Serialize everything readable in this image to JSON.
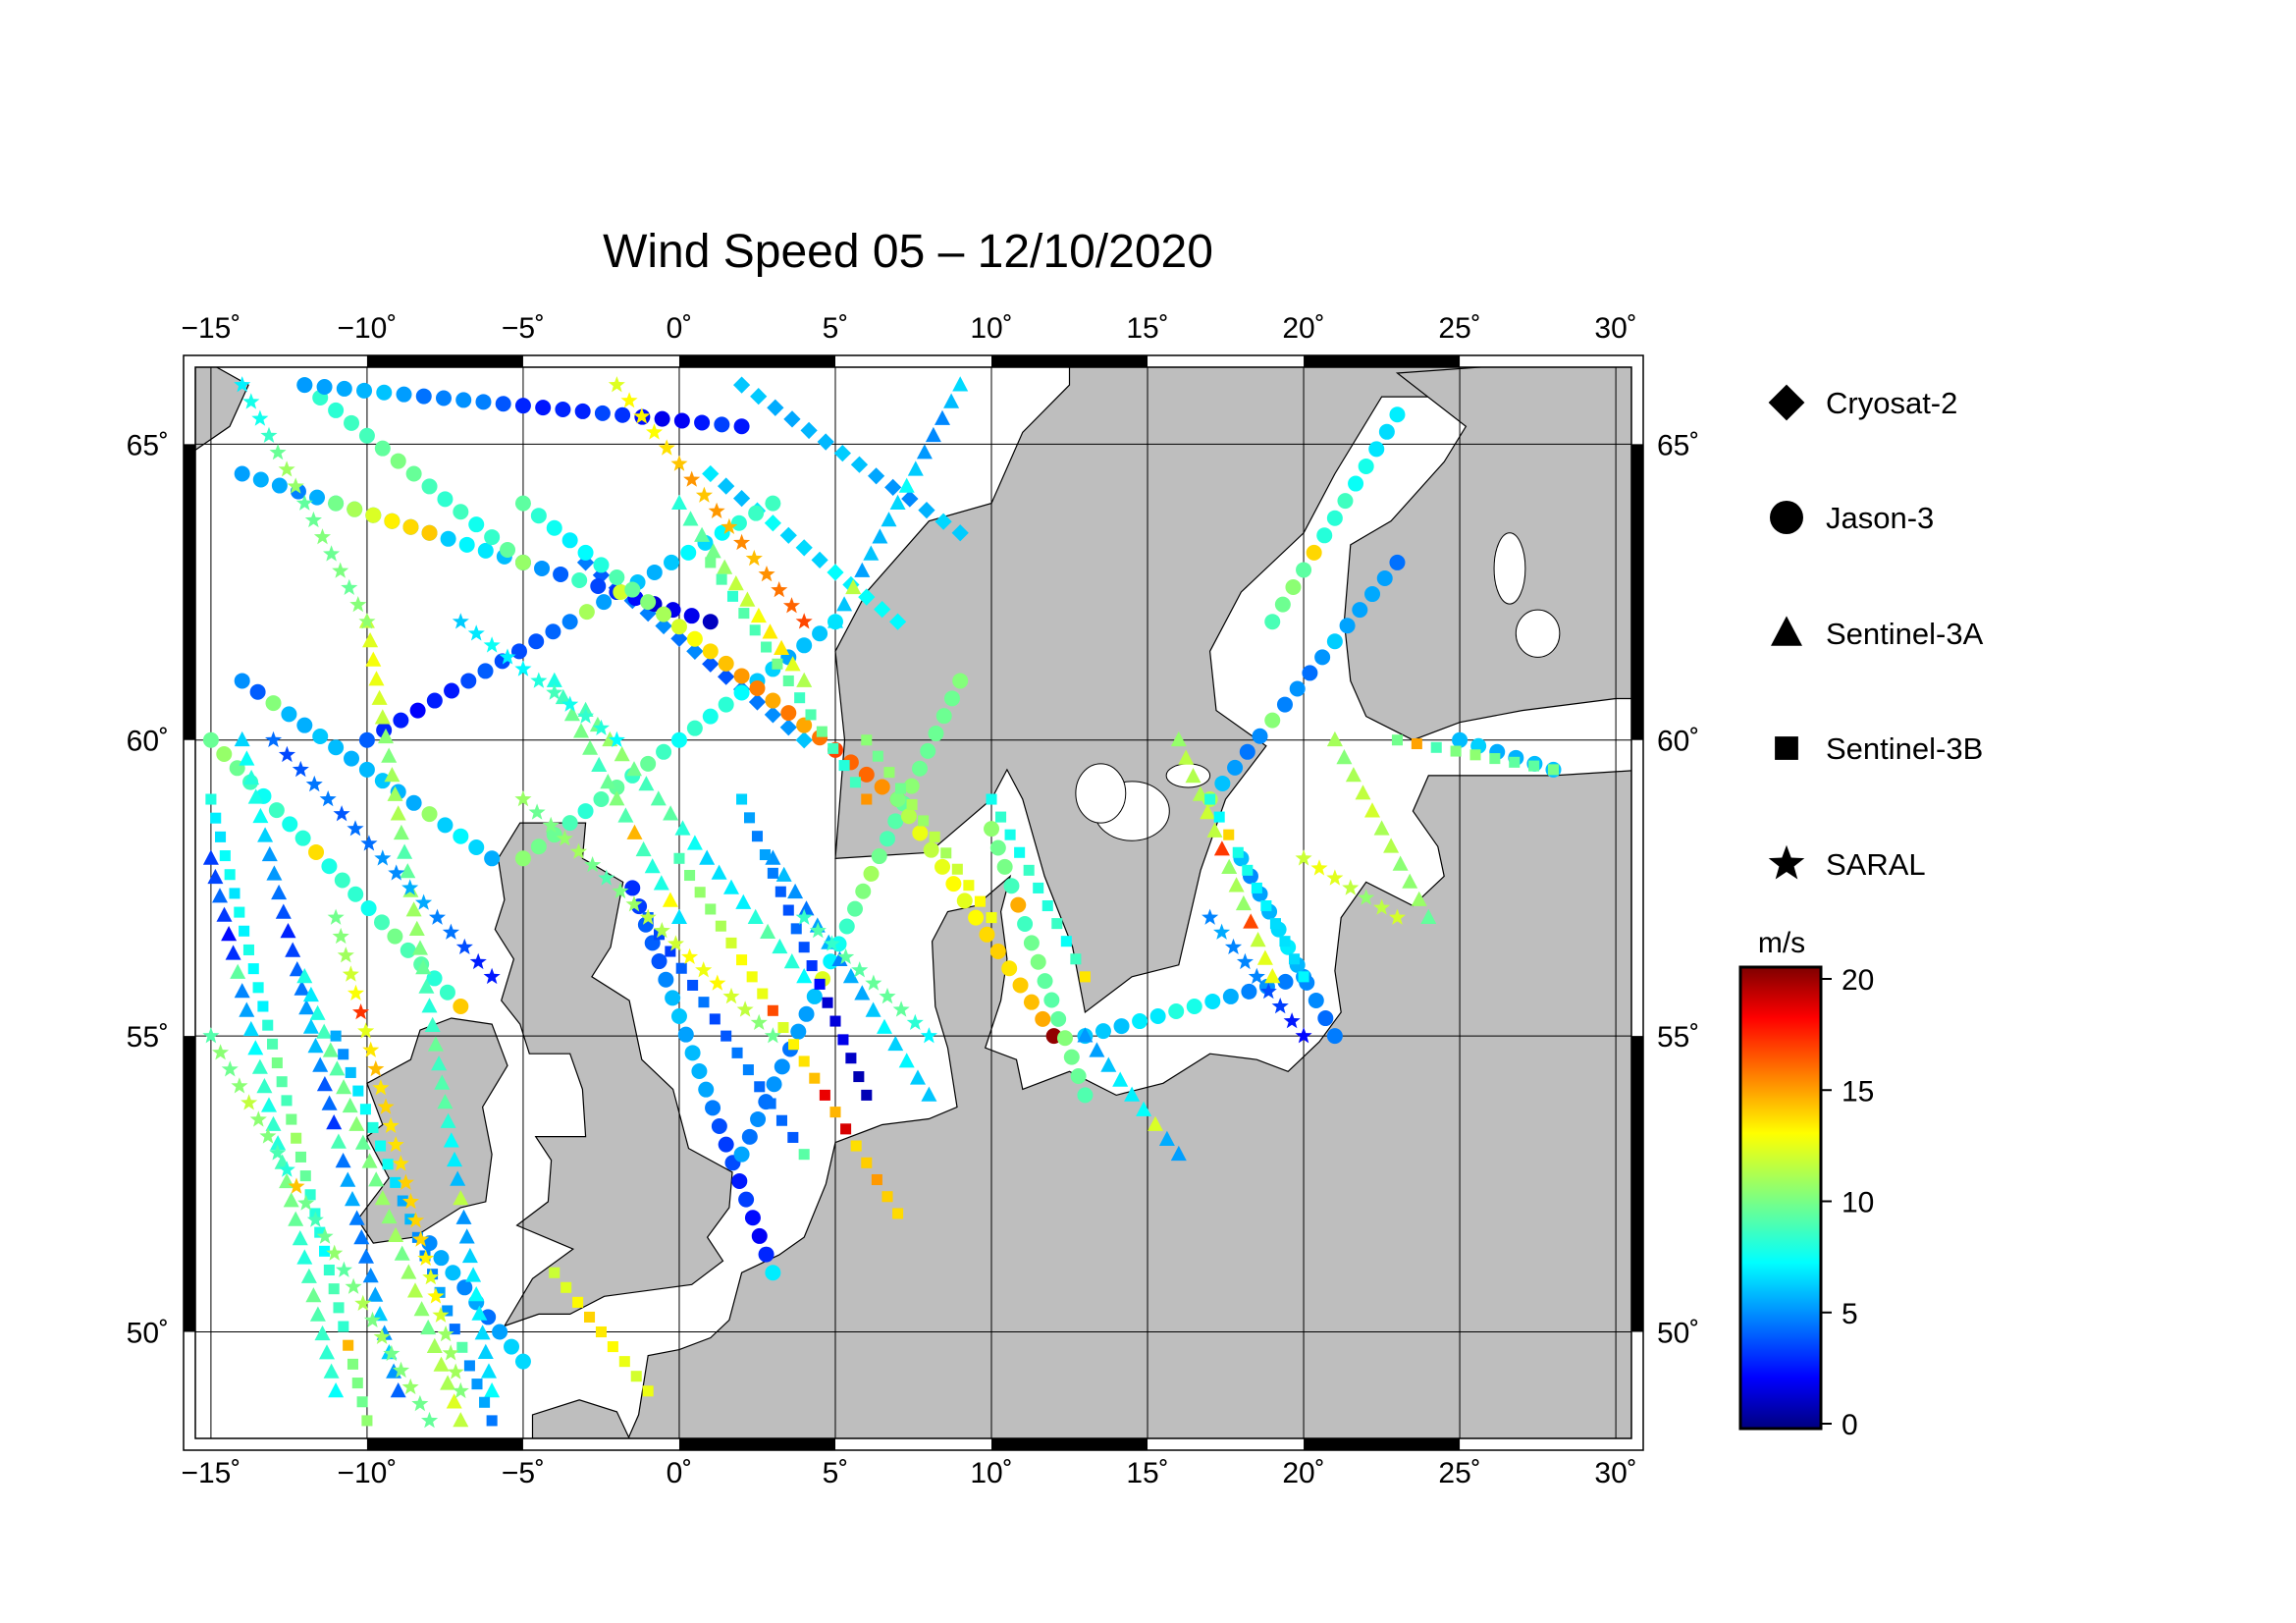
{
  "title": "Wind Speed 05 – 12/10/2020",
  "chart_data": {
    "type": "scatter",
    "title": "Wind Speed 05 – 12/10/2020",
    "x_range_deg": [
      -15.5,
      30.5
    ],
    "y_range_deg": [
      48.2,
      66.3
    ],
    "x_ticks": [
      -15,
      -10,
      -5,
      0,
      5,
      10,
      15,
      20,
      25,
      30
    ],
    "x_tick_labels": [
      "−15˚",
      "−10˚",
      "−5˚",
      "0˚",
      "5˚",
      "10˚",
      "15˚",
      "20˚",
      "25˚",
      "30˚"
    ],
    "y_ticks": [
      50,
      55,
      60,
      65
    ],
    "y_tick_labels": [
      "50˚",
      "55˚",
      "60˚",
      "65˚"
    ],
    "grid": true,
    "land_color": "#bebebe",
    "sea_color": "#ffffff",
    "series": [
      {
        "name": "Cryosat-2",
        "marker": "diamond",
        "tracks": [
          {
            "lon": [
              -3,
              4
            ],
            "lat": [
              63,
              60
            ]
          },
          {
            "lon": [
              1,
              7
            ],
            "lat": [
              64.5,
              62
            ]
          },
          {
            "lon": [
              2,
              9
            ],
            "lat": [
              66,
              63.5
            ]
          }
        ]
      },
      {
        "name": "Jason-3",
        "marker": "circle",
        "tracks": [
          {
            "lon": [
              -14,
              1
            ],
            "lat": [
              64.5,
              62
            ]
          },
          {
            "lon": [
              -14,
              -6
            ],
            "lat": [
              61,
              58
            ]
          },
          {
            "lon": [
              -12,
              -5
            ],
            "lat": [
              66,
              63
            ]
          },
          {
            "lon": [
              -15,
              -7
            ],
            "lat": [
              60,
              55.5
            ]
          },
          {
            "lon": [
              -10,
              3
            ],
            "lat": [
              60,
              64
            ]
          },
          {
            "lon": [
              -5,
              5
            ],
            "lat": [
              58,
              62
            ]
          },
          {
            "lon": [
              -5,
              7
            ],
            "lat": [
              64,
              59
            ]
          },
          {
            "lon": [
              -1.5,
              3
            ],
            "lat": [
              57.5,
              51
            ]
          },
          {
            "lon": [
              2,
              9
            ],
            "lat": [
              53,
              61
            ]
          },
          {
            "lon": [
              -12,
              2
            ],
            "lat": [
              66,
              65.3
            ]
          },
          {
            "lon": [
              7,
              12
            ],
            "lat": [
              59,
              55
            ]
          },
          {
            "lon": [
              10,
              13
            ],
            "lat": [
              58.5,
              54
            ]
          },
          {
            "lon": [
              13,
              20
            ],
            "lat": [
              55,
              56
            ]
          },
          {
            "lon": [
              19,
              23
            ],
            "lat": [
              62,
              65.5
            ]
          },
          {
            "lon": [
              17,
              23
            ],
            "lat": [
              59,
              63
            ]
          },
          {
            "lon": [
              18,
              21
            ],
            "lat": [
              58,
              55
            ]
          },
          {
            "lon": [
              25,
              28
            ],
            "lat": [
              60,
              59.5
            ]
          },
          {
            "lon": [
              -11,
              -8
            ],
            "lat": [
              64,
              63.5
            ]
          },
          {
            "lon": [
              -8,
              -5
            ],
            "lat": [
              51.5,
              49.5
            ]
          }
        ]
      },
      {
        "name": "Sentinel-3A",
        "marker": "triangle",
        "tracks": [
          {
            "lon": [
              -10,
              -6
            ],
            "lat": [
              62,
              49
            ]
          },
          {
            "lon": [
              -14,
              -9
            ],
            "lat": [
              60,
              49
            ]
          },
          {
            "lon": [
              -3,
              4
            ],
            "lat": [
              60.5,
              56
            ]
          },
          {
            "lon": [
              3,
              8
            ],
            "lat": [
              58,
              54
            ]
          },
          {
            "lon": [
              -12,
              -7
            ],
            "lat": [
              56,
              48.5
            ]
          },
          {
            "lon": [
              5,
              9
            ],
            "lat": [
              62,
              66
            ]
          },
          {
            "lon": [
              0,
              4
            ],
            "lat": [
              64,
              61
            ]
          },
          {
            "lon": [
              -15,
              -11
            ],
            "lat": [
              58,
              49
            ]
          },
          {
            "lon": [
              -4,
              0
            ],
            "lat": [
              61,
              57
            ]
          },
          {
            "lon": [
              16,
              19
            ],
            "lat": [
              60,
              56
            ]
          },
          {
            "lon": [
              21,
              24
            ],
            "lat": [
              60,
              57
            ]
          },
          {
            "lon": [
              13,
              16
            ],
            "lat": [
              55,
              53
            ]
          }
        ]
      },
      {
        "name": "Sentinel-3B",
        "marker": "square",
        "tracks": [
          {
            "lon": [
              -15,
              -10
            ],
            "lat": [
              59,
              48.5
            ]
          },
          {
            "lon": [
              -11,
              -6
            ],
            "lat": [
              55,
              48.5
            ]
          },
          {
            "lon": [
              0,
              7
            ],
            "lat": [
              58,
              52
            ]
          },
          {
            "lon": [
              2,
              6
            ],
            "lat": [
              59,
              54
            ]
          },
          {
            "lon": [
              1,
              6
            ],
            "lat": [
              63,
              59
            ]
          },
          {
            "lon": [
              -4,
              -1
            ],
            "lat": [
              51,
              49
            ]
          },
          {
            "lon": [
              17,
              20
            ],
            "lat": [
              59,
              56
            ]
          },
          {
            "lon": [
              10,
              13
            ],
            "lat": [
              59,
              56
            ]
          },
          {
            "lon": [
              23,
              28
            ],
            "lat": [
              60,
              59.5
            ]
          },
          {
            "lon": [
              -1,
              4
            ],
            "lat": [
              57,
              53
            ]
          },
          {
            "lon": [
              6,
              10
            ],
            "lat": [
              60,
              57
            ]
          }
        ]
      },
      {
        "name": "SARAL",
        "marker": "star",
        "tracks": [
          {
            "lon": [
              -13,
              -6
            ],
            "lat": [
              60,
              56
            ]
          },
          {
            "lon": [
              -11,
              -7
            ],
            "lat": [
              57,
              49
            ]
          },
          {
            "lon": [
              -15,
              -8
            ],
            "lat": [
              55,
              48.5
            ]
          },
          {
            "lon": [
              -5,
              3
            ],
            "lat": [
              59,
              55
            ]
          },
          {
            "lon": [
              4,
              8
            ],
            "lat": [
              57,
              55
            ]
          },
          {
            "lon": [
              -7,
              -2
            ],
            "lat": [
              62,
              60
            ]
          },
          {
            "lon": [
              -14,
              -10
            ],
            "lat": [
              66,
              62
            ]
          },
          {
            "lon": [
              -2,
              4
            ],
            "lat": [
              66,
              62
            ]
          },
          {
            "lon": [
              17,
              20
            ],
            "lat": [
              57,
              55
            ]
          },
          {
            "lon": [
              20,
              23
            ],
            "lat": [
              58,
              57
            ]
          }
        ]
      }
    ],
    "colorbar": {
      "unit": "m/s",
      "range": [
        0,
        20
      ],
      "tick_values": [
        0,
        5,
        10,
        15,
        20
      ],
      "tick_labels": [
        "0",
        "5",
        "10",
        "15",
        "20"
      ],
      "colormap": "jet"
    },
    "legend": {
      "placement": "right",
      "entries": [
        {
          "label": "Cryosat-2",
          "marker": "diamond"
        },
        {
          "label": "Jason-3",
          "marker": "circle"
        },
        {
          "label": "Sentinel-3A",
          "marker": "triangle"
        },
        {
          "label": "Sentinel-3B",
          "marker": "square"
        },
        {
          "label": "SARAL",
          "marker": "star"
        }
      ]
    }
  }
}
